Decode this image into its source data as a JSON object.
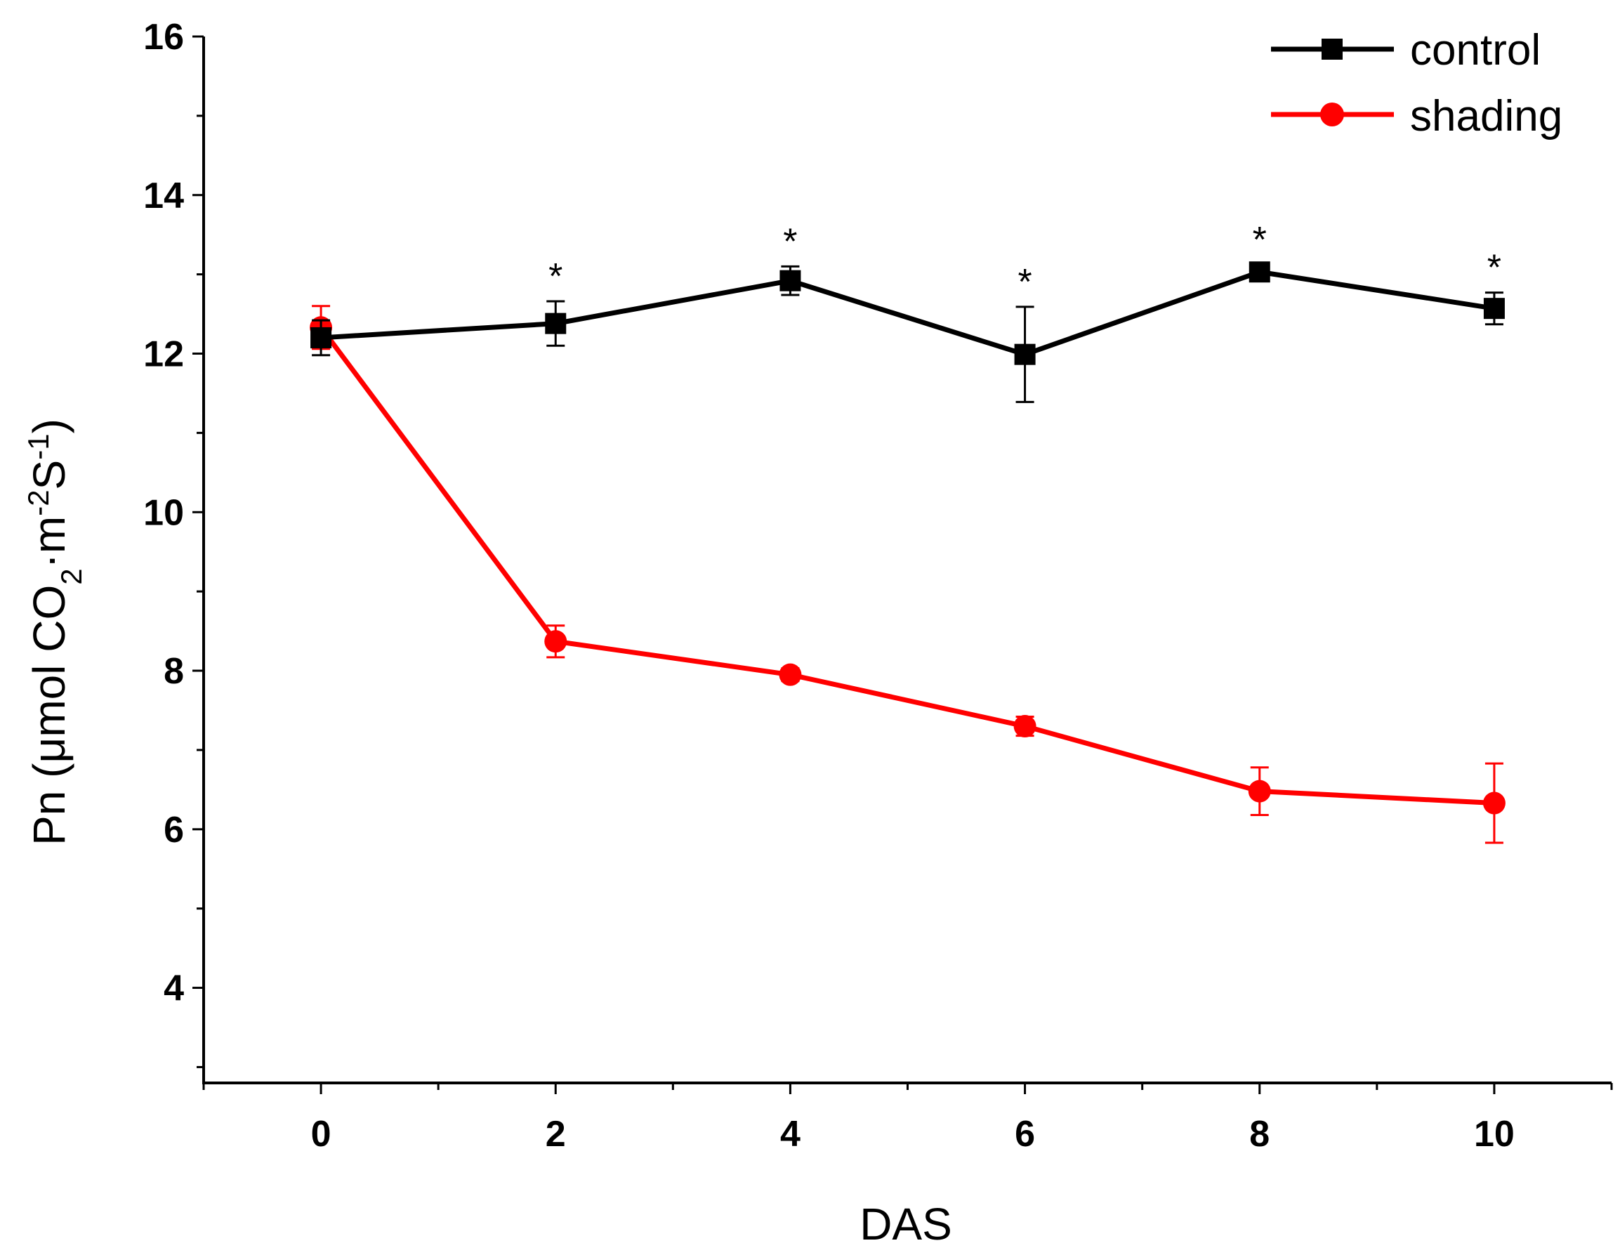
{
  "chart_data": {
    "type": "line",
    "title": "",
    "xlabel": "DAS",
    "ylabel": {
      "prefix": "Pn (μmol CO",
      "sub": "2",
      "mid": "·m",
      "sup1": "-2",
      "s": "S",
      "sup2": "-1",
      "suffix": ")"
    },
    "xlim": [
      -1,
      11
    ],
    "ylim": [
      2.8,
      16
    ],
    "x_ticks": [
      0,
      2,
      4,
      6,
      8,
      10
    ],
    "x_tick_labels": [
      "0",
      "2",
      "4",
      "6",
      "8",
      "10"
    ],
    "y_ticks": [
      4,
      6,
      8,
      10,
      12,
      14,
      16
    ],
    "y_tick_labels": [
      "4",
      "6",
      "8",
      "10",
      "12",
      "14",
      "16"
    ],
    "legend_position": "top-right",
    "series": [
      {
        "name": "control",
        "color": "#000000",
        "marker": "square",
        "x": [
          0,
          2,
          4,
          6,
          8,
          10
        ],
        "values": [
          12.2,
          12.38,
          12.92,
          11.99,
          13.03,
          12.57
        ],
        "errors": [
          0.22,
          0.28,
          0.18,
          0.6,
          0.09,
          0.2
        ],
        "significance": [
          "",
          "*",
          "*",
          "*",
          "*",
          "*"
        ]
      },
      {
        "name": "shading",
        "color": "#ff0000",
        "marker": "circle",
        "x": [
          0,
          2,
          4,
          6,
          8,
          10
        ],
        "values": [
          12.33,
          8.37,
          7.95,
          7.3,
          6.48,
          6.33
        ],
        "errors": [
          0.27,
          0.2,
          0.08,
          0.12,
          0.3,
          0.5
        ]
      }
    ]
  }
}
